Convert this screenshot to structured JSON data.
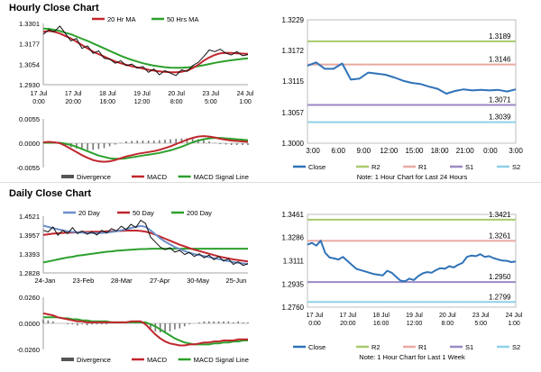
{
  "sections": {
    "hourly_title": "Hourly Close Chart",
    "daily_title": "Daily Close Chart"
  },
  "colors": {
    "price": "#111111",
    "ma_short": "#c0272d",
    "ma_long": "#2ca02c",
    "ma_long_daily": "#2ca02c",
    "ma_20_day": "#6a8fc8",
    "macd": "#c0272d",
    "signal": "#2ca02c",
    "divergence": "#777777",
    "close_line": "#2f73b8",
    "r2": "#a8c96b",
    "r1": "#e8a9a0",
    "s1": "#9c8ac4",
    "s2": "#8fd0e8",
    "axis": "#888888"
  },
  "chart_data": [
    {
      "id": "hourly-ma",
      "type": "line",
      "legend": [
        "20 Hr MA",
        "50 Hrs MA"
      ],
      "y_ticks": [
        "1.3301",
        "1.3177",
        "1.3054",
        "1.2930"
      ],
      "ylim": [
        1.293,
        1.3301
      ],
      "x_ticks": [
        [
          "17 Jul",
          "0:00"
        ],
        [
          "17 Jul",
          "20:00"
        ],
        [
          "18 Jul",
          "16:00"
        ],
        [
          "19 Jul",
          "12:00"
        ],
        [
          "20 Jul",
          "8:00"
        ],
        [
          "23 Jul",
          "5:00"
        ],
        [
          "24 Jul",
          "1:00"
        ]
      ],
      "series": [
        {
          "name": "close",
          "values": [
            1.3235,
            1.3262,
            1.325,
            1.3285,
            1.324,
            1.3195,
            1.321,
            1.315,
            1.3165,
            1.312,
            1.3135,
            1.309,
            1.3085,
            1.306,
            1.3075,
            1.3045,
            1.3055,
            1.303,
            1.304,
            1.3005,
            1.3025,
            1.299,
            1.3015,
            1.3,
            1.2985,
            1.302,
            1.301,
            1.3045,
            1.3065,
            1.31,
            1.314,
            1.313,
            1.3145,
            1.312,
            1.311,
            1.313,
            1.3105,
            1.3112
          ]
        },
        {
          "name": "20 Hr MA",
          "values": [
            1.325,
            1.3255,
            1.325,
            1.324,
            1.3225,
            1.321,
            1.319,
            1.317,
            1.315,
            1.313,
            1.3115,
            1.31,
            1.3085,
            1.307,
            1.306,
            1.305,
            1.3042,
            1.3035,
            1.3028,
            1.302,
            1.3015,
            1.301,
            1.3008,
            1.3005,
            1.3005,
            1.3008,
            1.3015,
            1.303,
            1.305,
            1.3075,
            1.3095,
            1.311,
            1.312,
            1.3123,
            1.3122,
            1.312,
            1.3118,
            1.3116
          ]
        },
        {
          "name": "50 Hrs MA",
          "values": [
            1.327,
            1.3268,
            1.3262,
            1.3255,
            1.3245,
            1.3235,
            1.3222,
            1.3208,
            1.3195,
            1.318,
            1.3165,
            1.315,
            1.3135,
            1.312,
            1.3105,
            1.3092,
            1.308,
            1.307,
            1.306,
            1.3052,
            1.3045,
            1.304,
            1.3036,
            1.3033,
            1.3032,
            1.3032,
            1.3034,
            1.3037,
            1.3042,
            1.3048,
            1.3055,
            1.3062,
            1.3068,
            1.3073,
            1.3078,
            1.3082,
            1.3086,
            1.309
          ]
        }
      ]
    },
    {
      "id": "hourly-macd",
      "type": "line",
      "legend": [
        "Divergence",
        "MACD",
        "MACD Signal Line"
      ],
      "y_ticks": [
        "0.0055",
        "0.0000",
        "-0.0055"
      ],
      "ylim": [
        -0.0055,
        0.0055
      ],
      "series": [
        {
          "name": "MACD",
          "values": [
            0.0002,
            0.0003,
            0.0002,
            0.0,
            -0.0006,
            -0.0013,
            -0.002,
            -0.0027,
            -0.0033,
            -0.0038,
            -0.0041,
            -0.0042,
            -0.0041,
            -0.0038,
            -0.0034,
            -0.003,
            -0.0027,
            -0.0024,
            -0.0022,
            -0.002,
            -0.0018,
            -0.0015,
            -0.0011,
            -0.0007,
            -0.0002,
            0.0003,
            0.0008,
            0.0012,
            0.0015,
            0.0016,
            0.0015,
            0.0013,
            0.001,
            0.0008,
            0.0006,
            0.0005,
            0.0004,
            0.0003
          ]
        },
        {
          "name": "MACD Signal Line",
          "values": [
            0.0001,
            0.0001,
            0.0001,
            0.0001,
            -0.0001,
            -0.0004,
            -0.0008,
            -0.0013,
            -0.0018,
            -0.0023,
            -0.0028,
            -0.0031,
            -0.0034,
            -0.0035,
            -0.0035,
            -0.0034,
            -0.0032,
            -0.003,
            -0.0028,
            -0.0026,
            -0.0024,
            -0.0022,
            -0.0019,
            -0.0016,
            -0.0012,
            -0.0008,
            -0.0003,
            0.0002,
            0.0006,
            0.0009,
            0.0011,
            0.0012,
            0.0012,
            0.0011,
            0.001,
            0.0009,
            0.0008,
            0.0007
          ]
        }
      ]
    },
    {
      "id": "hourly-pivots",
      "type": "line",
      "y_ticks": [
        "1.3229",
        "1.3172",
        "1.3115",
        "1.3057",
        "1.3000"
      ],
      "ylim": [
        1.3,
        1.3229
      ],
      "x_ticks": [
        "3:00",
        "6:00",
        "9:00",
        "12:00",
        "15:00",
        "18:00",
        "21:00",
        "0:00",
        "3:00"
      ],
      "levels": [
        {
          "name": "R2",
          "value": 1.3189,
          "label": "1.3189"
        },
        {
          "name": "R1",
          "value": 1.3146,
          "label": "1.3146"
        },
        {
          "name": "S1",
          "value": 1.3071,
          "label": "1.3071"
        },
        {
          "name": "S2",
          "value": 1.3039,
          "label": "1.3039"
        }
      ],
      "legend": [
        "Close",
        "R2",
        "R1",
        "S1",
        "S2"
      ],
      "note": "Note: 1 Hour Chart for Last 24 Hours",
      "series": [
        {
          "name": "Close",
          "values": [
            1.3144,
            1.315,
            1.3138,
            1.3138,
            1.3148,
            1.3118,
            1.312,
            1.3131,
            1.3129,
            1.3127,
            1.3122,
            1.3116,
            1.3112,
            1.311,
            1.3105,
            1.3101,
            1.3092,
            1.3097,
            1.31,
            1.3098,
            1.3099,
            1.3098,
            1.3099,
            1.3096,
            1.31
          ]
        }
      ]
    },
    {
      "id": "daily-ma",
      "type": "line",
      "legend": [
        "20 Day",
        "50 Day",
        "200 Day"
      ],
      "y_ticks": [
        "1.4521",
        "1.3957",
        "1.3393",
        "1.2828"
      ],
      "ylim": [
        1.2828,
        1.4521
      ],
      "x_ticks": [
        "24-Jan",
        "23-Feb",
        "28-Mar",
        "27-Apr",
        "30-May",
        "25-Jun"
      ],
      "series": [
        {
          "name": "close",
          "values": [
            1.41,
            1.405,
            1.42,
            1.395,
            1.41,
            1.4,
            1.418,
            1.4,
            1.408,
            1.398,
            1.405,
            1.396,
            1.41,
            1.402,
            1.415,
            1.408,
            1.422,
            1.412,
            1.428,
            1.418,
            1.44,
            1.43,
            1.39,
            1.375,
            1.36,
            1.352,
            1.358,
            1.345,
            1.35,
            1.338,
            1.344,
            1.332,
            1.34,
            1.328,
            1.336,
            1.322,
            1.332,
            1.318,
            1.325,
            1.308,
            1.316,
            1.305,
            1.31
          ]
        },
        {
          "name": "20 Day",
          "values": [
            1.424,
            1.42,
            1.416,
            1.413,
            1.41,
            1.407,
            1.405,
            1.404,
            1.403,
            1.402,
            1.402,
            1.401,
            1.402,
            1.403,
            1.405,
            1.407,
            1.41,
            1.413,
            1.417,
            1.42,
            1.423,
            1.42,
            1.41,
            1.398,
            1.386,
            1.376,
            1.368,
            1.36,
            1.354,
            1.348,
            1.343,
            1.339,
            1.336,
            1.333,
            1.33,
            1.327,
            1.324,
            1.321,
            1.318,
            1.315,
            1.313,
            1.311,
            1.31
          ]
        },
        {
          "name": "50 Day",
          "values": [
            1.396,
            1.398,
            1.4,
            1.401,
            1.402,
            1.403,
            1.403,
            1.404,
            1.405,
            1.405,
            1.406,
            1.406,
            1.406,
            1.407,
            1.407,
            1.408,
            1.408,
            1.409,
            1.409,
            1.409,
            1.408,
            1.406,
            1.402,
            1.397,
            1.391,
            1.385,
            1.379,
            1.373,
            1.367,
            1.362,
            1.357,
            1.352,
            1.348,
            1.344,
            1.34,
            1.336,
            1.332,
            1.329,
            1.326,
            1.323,
            1.321,
            1.319,
            1.317
          ]
        },
        {
          "name": "200 Day",
          "values": [
            1.314,
            1.317,
            1.32,
            1.323,
            1.326,
            1.329,
            1.331,
            1.334,
            1.336,
            1.338,
            1.34,
            1.342,
            1.344,
            1.346,
            1.347,
            1.349,
            1.35,
            1.351,
            1.352,
            1.353,
            1.354,
            1.354,
            1.355,
            1.355,
            1.355,
            1.355,
            1.355,
            1.355,
            1.355,
            1.355,
            1.355,
            1.355,
            1.355,
            1.355,
            1.355,
            1.355,
            1.355,
            1.355,
            1.355,
            1.355,
            1.355,
            1.355,
            1.355
          ]
        }
      ]
    },
    {
      "id": "daily-macd",
      "type": "line",
      "legend": [
        "Divergence",
        "MACD",
        "MACD Signal Line"
      ],
      "y_ticks": [
        "0.0260",
        "0.0000",
        "-0.0260"
      ],
      "ylim": [
        -0.026,
        0.026
      ],
      "series": [
        {
          "name": "MACD",
          "values": [
            0.01,
            0.009,
            0.008,
            0.006,
            0.005,
            0.004,
            0.003,
            0.002,
            0.002,
            0.001,
            0.001,
            0.001,
            0.001,
            0.001,
            0.001,
            0.001,
            0.001,
            0.001,
            0.002,
            0.002,
            0.002,
            -0.001,
            -0.006,
            -0.011,
            -0.015,
            -0.018,
            -0.02,
            -0.021,
            -0.022,
            -0.022,
            -0.021,
            -0.021,
            -0.02,
            -0.019,
            -0.019,
            -0.018,
            -0.018,
            -0.017,
            -0.017,
            -0.017,
            -0.016,
            -0.016,
            -0.016
          ]
        },
        {
          "name": "MACD Signal Line",
          "values": [
            0.006,
            0.006,
            0.006,
            0.006,
            0.005,
            0.005,
            0.004,
            0.004,
            0.003,
            0.003,
            0.002,
            0.002,
            0.002,
            0.002,
            0.001,
            0.001,
            0.001,
            0.001,
            0.001,
            0.001,
            0.001,
            0.001,
            -0.001,
            -0.003,
            -0.006,
            -0.009,
            -0.012,
            -0.015,
            -0.017,
            -0.019,
            -0.02,
            -0.021,
            -0.021,
            -0.021,
            -0.021,
            -0.02,
            -0.02,
            -0.019,
            -0.019,
            -0.018,
            -0.018,
            -0.017,
            -0.017
          ]
        }
      ]
    },
    {
      "id": "daily-pivots",
      "type": "line",
      "y_ticks": [
        "1.3461",
        "1.3286",
        "1.3111",
        "1.2935",
        "1.2760"
      ],
      "ylim": [
        1.276,
        1.3461
      ],
      "x_ticks": [
        [
          "17 Jul",
          "0:00"
        ],
        [
          "17 Jul",
          "20:00"
        ],
        [
          "18 Jul",
          "16:00"
        ],
        [
          "19 Jul",
          "12:00"
        ],
        [
          "20 Jul",
          "8:00"
        ],
        [
          "23 Jul",
          "5:00"
        ],
        [
          "24 Jul",
          "1:00"
        ]
      ],
      "levels": [
        {
          "name": "R2",
          "value": 1.3421,
          "label": "1.3421"
        },
        {
          "name": "R1",
          "value": 1.3261,
          "label": "1.3261"
        },
        {
          "name": "S1",
          "value": 1.295,
          "label": "1.2950"
        },
        {
          "name": "S2",
          "value": 1.2799,
          "label": "1.2799"
        }
      ],
      "legend": [
        "Close",
        "R2",
        "R1",
        "S1",
        "S2"
      ],
      "note": "Note: 1 Hour Chart for Last 1 Week",
      "series": [
        {
          "name": "Close",
          "values": [
            1.3232,
            1.3245,
            1.3225,
            1.3262,
            1.317,
            1.3135,
            1.3128,
            1.312,
            1.314,
            1.311,
            1.308,
            1.305,
            1.304,
            1.303,
            1.302,
            1.301,
            1.3005,
            1.3,
            1.3035,
            1.302,
            1.299,
            1.296,
            1.2955,
            1.2975,
            1.2965,
            1.2995,
            1.3015,
            1.3025,
            1.302,
            1.304,
            1.3055,
            1.305,
            1.307,
            1.306,
            1.308,
            1.3095,
            1.314,
            1.315,
            1.3145,
            1.316,
            1.314,
            1.3145,
            1.313,
            1.312,
            1.3112,
            1.311,
            1.31,
            1.3105
          ]
        }
      ]
    }
  ]
}
